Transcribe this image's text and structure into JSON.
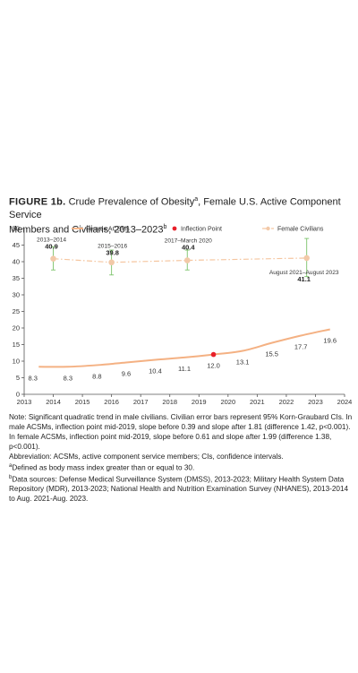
{
  "figure": {
    "label": "FIGURE 1b.",
    "title_line1": "Crude Prevalence of Obesity",
    "title_sup_a": "a",
    "title_line1_rest": ", Female U.S. Active Component Service",
    "title_line2": "Members and Civilians, 2013–2023",
    "title_sup_b": "b"
  },
  "notes": {
    "note_line": "Note: Significant quadratic trend in male civilians. Civilian error bars represent 95% Korn-Graubard CIs. In male ACSMs, inflection point mid-2019, slope before 0.39 and slope after 1.81 (difference 1.42, p<0.001). In female ACSMs, inflection point mid-2019, slope before 0.61 and slope after 1.99 (difference 1.38, p<0.001).",
    "abbreviation": "Abbreviation: ACSMs, active component service members; CIs, confidence intervals.",
    "footnote_a_marker": "a",
    "footnote_a": "Defined as body mass index greater than or equal to 30.",
    "footnote_b_marker": "b",
    "footnote_b": "Data sources: Defense Medical Surveillance System (DMSS), 2013-2023; Military Health System Data Repository (MDR), 2013-2023; National Health and Nutrition Examination Survey (NHANES), 2013-2014 to Aug. 2021-Aug. 2023."
  },
  "colors": {
    "acsm": "#f4b183",
    "inflection": "#e8202a",
    "civilian": "#f5c6a0",
    "civilian_marker": "#f2c9a8",
    "error_bar": "#7cc36a",
    "axis": "#555555"
  },
  "chart_data": {
    "type": "line",
    "xlim": [
      2013,
      2024
    ],
    "ylim": [
      0,
      50
    ],
    "x_ticks": [
      2013,
      2014,
      2015,
      2016,
      2017,
      2018,
      2019,
      2020,
      2021,
      2022,
      2023,
      2024
    ],
    "y_ticks": [
      0,
      5,
      10,
      15,
      20,
      25,
      30,
      35,
      40,
      45,
      50
    ],
    "grid": false,
    "legend": {
      "placement": "top",
      "entries": [
        "Female ACSMs",
        "Inflection Point",
        "Female Civilians"
      ]
    },
    "series": [
      {
        "name": "Female ACSMs",
        "style": "solid",
        "x": [
          2013.5,
          2014.5,
          2015.5,
          2016.5,
          2017.5,
          2018.5,
          2019.5,
          2020.5,
          2021.5,
          2022.5,
          2023.5
        ],
        "values": [
          8.3,
          8.3,
          8.8,
          9.6,
          10.4,
          11.1,
          12.0,
          13.1,
          15.5,
          17.7,
          19.6
        ],
        "labels": [
          "8.3",
          "8.3",
          "8.8",
          "9.6",
          "10.4",
          "11.1",
          "12.0",
          "13.1",
          "15.5",
          "17.7",
          "19.6"
        ]
      },
      {
        "name": "Female Civilians",
        "style": "dash-dot",
        "x": [
          2014.0,
          2016.0,
          2018.6,
          2022.7
        ],
        "values": [
          40.9,
          39.8,
          40.4,
          41.1
        ],
        "ci_low": [
          37.5,
          36.0,
          37.5,
          35.5
        ],
        "ci_high": [
          44.5,
          43.5,
          43.5,
          47.0
        ],
        "period_labels": [
          "2013–2014",
          "2015–2016",
          "2017–March 2020",
          "August 2021–August 2023"
        ],
        "labels": [
          "40.9",
          "39.8",
          "40.4",
          "41.1"
        ]
      }
    ],
    "inflection_point": {
      "name": "Inflection Point",
      "x": 2019.5,
      "y": 12.0
    }
  }
}
